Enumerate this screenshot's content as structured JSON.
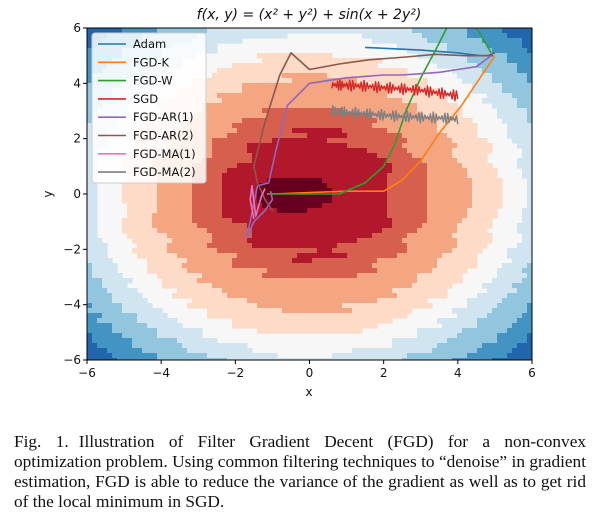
{
  "figure": {
    "title": "f(x, y) = (x² + y²) + sin(x + 2y²)",
    "caption_label": "Fig. 1.",
    "caption_text": "Illustration of Filter Gradient Decent (FGD) for a non-convex optimization problem. Using common filtering techniques to “denoise” in gradient estimation, FGD is able to reduce the variance of the gradient as well as to get rid of the local minimum in SGD."
  },
  "chart_data": {
    "type": "line",
    "background": "filled contour of f(x, y)",
    "colormap": "RdBu_r",
    "title": "f(x, y) = (x² + y²) + sin(x + 2y²)",
    "xlabel": "x",
    "ylabel": "y",
    "xlim": [
      -6,
      6
    ],
    "ylim": [
      -6,
      6
    ],
    "xticks": [
      "−6",
      "−4",
      "−2",
      "0",
      "2",
      "4",
      "6"
    ],
    "yticks": [
      "−6",
      "−4",
      "−2",
      "0",
      "2",
      "4",
      "6"
    ],
    "grid": false,
    "legend_position": "top-left",
    "series": [
      {
        "name": "Adam",
        "color": "#1f77b4",
        "x": [
          1.5,
          3.0,
          4.0,
          4.6,
          4.9,
          4.95
        ],
        "y": [
          5.3,
          5.2,
          5.1,
          5.0,
          5.0,
          5.0
        ]
      },
      {
        "name": "FGD-K",
        "color": "#ff7f0e",
        "x": [
          -1.15,
          -1.0,
          0.0,
          1.0,
          2.0,
          2.5,
          3.0,
          3.5,
          4.1,
          4.6,
          5.0
        ],
        "y": [
          0.0,
          0.0,
          0.05,
          0.1,
          0.1,
          0.5,
          1.2,
          2.2,
          3.2,
          4.2,
          5.0
        ]
      },
      {
        "name": "FGD-W",
        "color": "#2ca02c",
        "x": [
          -1.1,
          -0.8,
          0.0,
          0.8,
          1.5,
          2.0,
          2.3,
          2.6,
          3.0,
          3.4,
          3.7,
          4.0,
          4.3,
          4.6,
          4.9
        ],
        "y": [
          0.0,
          0.0,
          0.0,
          0.0,
          0.4,
          1.0,
          1.8,
          3.0,
          4.2,
          5.2,
          6.0,
          6.6,
          6.4,
          5.8,
          5.1
        ]
      },
      {
        "name": "SGD",
        "color": "#d62728",
        "noise": true,
        "x": [
          0.6,
          1.0,
          1.5,
          2.0,
          2.5,
          3.0,
          3.5,
          4.0
        ],
        "y": [
          3.95,
          3.93,
          3.9,
          3.85,
          3.8,
          3.75,
          3.65,
          3.55
        ]
      },
      {
        "name": "FGD-AR(1)",
        "color": "#9467bd",
        "x": [
          4.9,
          4.5,
          4.0,
          3.5,
          3.0,
          2.5,
          2.0,
          1.5,
          1.0,
          0.5,
          0.0,
          -0.6,
          -0.9,
          -1.0,
          -1.1,
          -1.4,
          -1.5,
          -1.6,
          -1.7,
          -1.5,
          -1.2,
          -1.0,
          -1.05
        ],
        "y": [
          5.0,
          4.6,
          4.5,
          4.4,
          4.35,
          4.3,
          4.3,
          4.25,
          4.2,
          4.1,
          4.0,
          3.2,
          1.6,
          1.0,
          0.4,
          0.3,
          -0.3,
          -1.0,
          -1.6,
          -1.0,
          -0.6,
          -0.2,
          0.1
        ]
      },
      {
        "name": "FGD-AR(2)",
        "color": "#8c564b",
        "x": [
          5.0,
          4.8,
          4.2,
          3.4,
          2.6,
          1.6,
          0.8,
          0.0,
          -0.5,
          -0.8,
          -1.2,
          -1.5,
          -1.4,
          -1.2,
          -1.0,
          -1.1
        ],
        "y": [
          5.1,
          5.0,
          5.0,
          5.05,
          4.95,
          4.85,
          4.7,
          4.5,
          5.1,
          4.3,
          2.6,
          1.0,
          0.4,
          -0.2,
          -0.6,
          -0.4
        ]
      },
      {
        "name": "FGD-MA(1)",
        "color": "#e377c2",
        "x": [
          -1.5,
          -1.6,
          -1.55,
          -1.45,
          -1.3,
          -1.2
        ],
        "y": [
          -0.9,
          -0.2,
          0.3,
          -0.8,
          -0.1,
          0.2
        ]
      },
      {
        "name": "FGD-MA(2)",
        "color": "#7f7f7f",
        "noise": true,
        "x": [
          0.6,
          1.0,
          1.5,
          2.0,
          2.5,
          3.0,
          3.5,
          4.0
        ],
        "y": [
          3.0,
          2.95,
          2.9,
          2.85,
          2.8,
          2.78,
          2.75,
          2.7
        ]
      }
    ]
  }
}
